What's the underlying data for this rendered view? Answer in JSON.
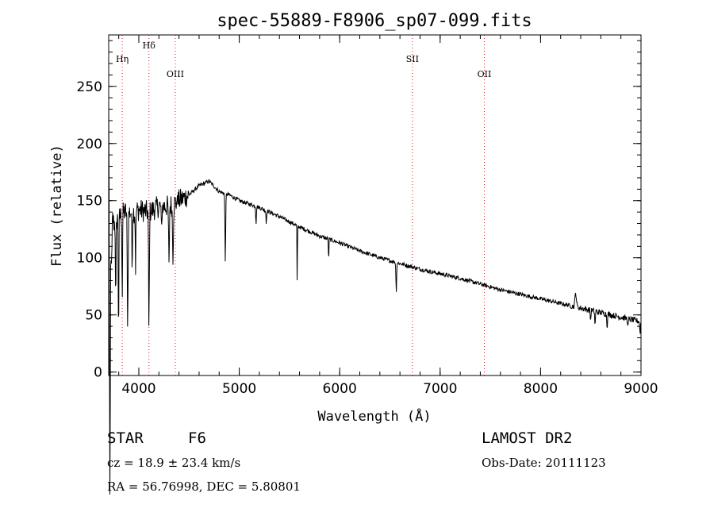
{
  "chart_data": {
    "type": "line",
    "title": "spec-55889-F8906_sp07-099.fits",
    "xlabel": "Wavelength (Å)",
    "ylabel": "Flux (relative)",
    "xlim": [
      3700,
      9000
    ],
    "ylim": [
      -3,
      295
    ],
    "x_ticks": [
      4000,
      5000,
      6000,
      7000,
      8000,
      9000
    ],
    "y_ticks": [
      0,
      50,
      100,
      150,
      200,
      250
    ],
    "x_minor_step": 200,
    "y_minor_step": 10,
    "series": [
      {
        "name": "spectrum",
        "noise": 4,
        "continuum": [
          [
            3700,
            240
          ],
          [
            3715,
            150
          ],
          [
            3750,
            130
          ],
          [
            3800,
            135
          ],
          [
            3850,
            140
          ],
          [
            3900,
            140
          ],
          [
            3950,
            140
          ],
          [
            4000,
            142
          ],
          [
            4100,
            140
          ],
          [
            4200,
            145
          ],
          [
            4300,
            145
          ],
          [
            4400,
            150
          ],
          [
            4500,
            155
          ],
          [
            4600,
            163
          ],
          [
            4700,
            167
          ],
          [
            4800,
            158
          ],
          [
            4900,
            155
          ],
          [
            5000,
            150
          ],
          [
            5200,
            144
          ],
          [
            5400,
            136
          ],
          [
            5600,
            127
          ],
          [
            5800,
            119
          ],
          [
            6000,
            113
          ],
          [
            6200,
            106
          ],
          [
            6400,
            100
          ],
          [
            6600,
            95
          ],
          [
            6800,
            90
          ],
          [
            7000,
            86
          ],
          [
            7200,
            82
          ],
          [
            7400,
            77
          ],
          [
            7600,
            72
          ],
          [
            7800,
            68
          ],
          [
            8000,
            64
          ],
          [
            8200,
            60
          ],
          [
            8400,
            56
          ],
          [
            8600,
            52
          ],
          [
            8800,
            48
          ],
          [
            8950,
            45
          ],
          [
            9000,
            44
          ]
        ],
        "features": [
          [
            3712,
            285,
            6
          ],
          [
            3728,
            55,
            6
          ],
          [
            3770,
            80,
            4
          ],
          [
            3798,
            105,
            4
          ],
          [
            3835,
            75,
            4
          ],
          [
            3889,
            95,
            6
          ],
          [
            3933,
            50,
            4
          ],
          [
            3968,
            50,
            4
          ],
          [
            4101,
            105,
            5
          ],
          [
            4226,
            25,
            4
          ],
          [
            4300,
            55,
            5
          ],
          [
            4340,
            45,
            6
          ],
          [
            4383,
            40,
            3
          ],
          [
            4384,
            -45,
            3
          ],
          [
            4861,
            60,
            5
          ],
          [
            5167,
            15,
            4
          ],
          [
            5269,
            12,
            4
          ],
          [
            5577,
            55,
            3
          ],
          [
            5890,
            22,
            3
          ],
          [
            6563,
            25,
            5
          ],
          [
            8350,
            -12,
            10
          ],
          [
            8498,
            10,
            4
          ],
          [
            8542,
            14,
            4
          ],
          [
            8662,
            12,
            4
          ],
          [
            8870,
            8,
            5
          ],
          [
            8990,
            10,
            5
          ]
        ]
      }
    ],
    "reference_lines": [
      {
        "label": "Hη",
        "wavelength": 3835,
        "tier": 1
      },
      {
        "label": "Hδ",
        "wavelength": 4101,
        "tier": 0
      },
      {
        "label": "OIII",
        "wavelength": 4363,
        "tier": 2
      },
      {
        "label": "SII",
        "wavelength": 6724,
        "tier": 1
      },
      {
        "label": "OII",
        "wavelength": 7440,
        "tier": 2
      }
    ],
    "reference_line_color": "#e31b1b",
    "line_color": "#000000"
  },
  "info": {
    "object_type": "STAR",
    "subclass": "F6",
    "survey": "LAMOST DR2",
    "redshift": "cz = 18.9 ± 23.4 km/s",
    "obs_date": "Obs-Date: 20111123",
    "coords": "RA =  56.76998, DEC =   5.80801"
  }
}
